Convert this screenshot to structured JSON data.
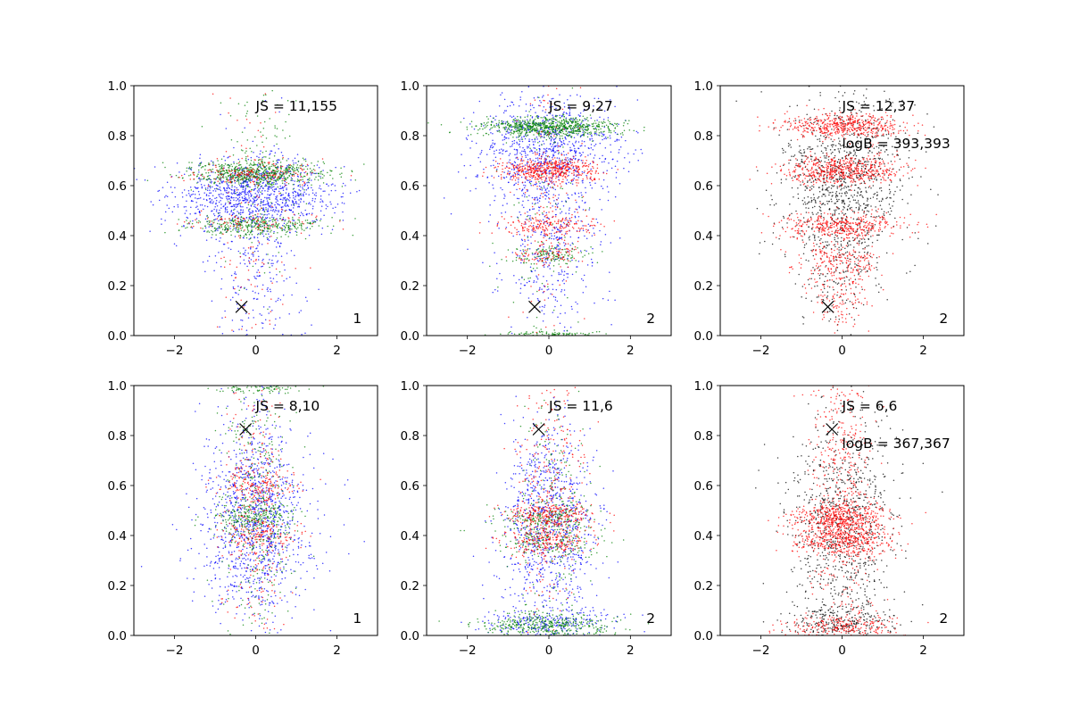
{
  "figure": {
    "layout": "2x3 grid of scatter panels",
    "colors": {
      "blue": "#0000ff",
      "green": "#008000",
      "red": "#ff0000",
      "black": "#000000"
    }
  },
  "chart_data": [
    {
      "type": "scatter",
      "xlim": [
        -3,
        3
      ],
      "ylim": [
        0,
        1
      ],
      "x_ticks": [
        "−2",
        "0",
        "2"
      ],
      "y_ticks": [
        "0.0",
        "0.2",
        "0.4",
        "0.6",
        "0.8",
        "1.0"
      ],
      "annotations": [
        "JS = 11,155"
      ],
      "panel_label": "1",
      "marker_x": {
        "x": -0.35,
        "y": 0.115
      },
      "series": [
        {
          "color": "#0000ff",
          "clusters": [
            {
              "y": 0.56,
              "sd_y": 0.07,
              "sd_x": 1.0,
              "n": 1000
            },
            {
              "y": 0.3,
              "sd_y": 0.25,
              "sd_x": 0.6,
              "n": 320
            }
          ]
        },
        {
          "color": "#008000",
          "clusters": [
            {
              "y": 0.65,
              "sd_y": 0.025,
              "sd_x": 0.85,
              "n": 650
            },
            {
              "y": 0.44,
              "sd_y": 0.02,
              "sd_x": 0.8,
              "n": 350
            },
            {
              "y": 0.7,
              "sd_y": 0.25,
              "sd_x": 0.5,
              "n": 140
            }
          ]
        },
        {
          "color": "#ff0000",
          "clusters": [
            {
              "y": 0.65,
              "sd_y": 0.025,
              "sd_x": 0.8,
              "n": 160
            },
            {
              "y": 0.45,
              "sd_y": 0.02,
              "sd_x": 0.8,
              "n": 80
            },
            {
              "y": 0.4,
              "sd_y": 0.3,
              "sd_x": 0.5,
              "n": 120
            }
          ]
        }
      ]
    },
    {
      "type": "scatter",
      "xlim": [
        -3,
        3
      ],
      "ylim": [
        0,
        1
      ],
      "x_ticks": [
        "−2",
        "0",
        "2"
      ],
      "y_ticks": [
        "0.0",
        "0.2",
        "0.4",
        "0.6",
        "0.8",
        "1.0"
      ],
      "annotations": [
        "JS = 9,27"
      ],
      "panel_label": "2",
      "marker_x": {
        "x": -0.35,
        "y": 0.115
      },
      "series": [
        {
          "color": "#0000ff",
          "clusters": [
            {
              "y": 0.75,
              "sd_y": 0.1,
              "sd_x": 0.9,
              "n": 800
            },
            {
              "y": 0.4,
              "sd_y": 0.22,
              "sd_x": 0.6,
              "n": 500
            }
          ]
        },
        {
          "color": "#008000",
          "clusters": [
            {
              "y": 0.835,
              "sd_y": 0.02,
              "sd_x": 0.85,
              "n": 750
            },
            {
              "y": 0.32,
              "sd_y": 0.02,
              "sd_x": 0.5,
              "n": 120
            },
            {
              "y": 0.005,
              "sd_y": 0.008,
              "sd_x": 0.7,
              "n": 100
            },
            {
              "y": 0.5,
              "sd_y": 0.3,
              "sd_x": 0.5,
              "n": 120
            }
          ]
        },
        {
          "color": "#ff0000",
          "clusters": [
            {
              "y": 0.66,
              "sd_y": 0.025,
              "sd_x": 0.6,
              "n": 500
            },
            {
              "y": 0.44,
              "sd_y": 0.02,
              "sd_x": 0.55,
              "n": 180
            },
            {
              "y": 0.32,
              "sd_y": 0.025,
              "sd_x": 0.5,
              "n": 90
            },
            {
              "y": 0.5,
              "sd_y": 0.3,
              "sd_x": 0.45,
              "n": 140
            }
          ]
        }
      ]
    },
    {
      "type": "scatter",
      "xlim": [
        -3,
        3
      ],
      "ylim": [
        0,
        1
      ],
      "x_ticks": [
        "−2",
        "0",
        "2"
      ],
      "y_ticks": [
        "0.0",
        "0.2",
        "0.4",
        "0.6",
        "0.8",
        "1.0"
      ],
      "annotations": [
        "JS = 12,37",
        "logB = 393,393"
      ],
      "panel_label": "2",
      "marker_x": {
        "x": -0.35,
        "y": 0.115
      },
      "series": [
        {
          "color": "#000000",
          "clusters": [
            {
              "y": 0.62,
              "sd_y": 0.18,
              "sd_x": 0.8,
              "n": 1000
            },
            {
              "y": 0.3,
              "sd_y": 0.2,
              "sd_x": 0.5,
              "n": 200
            }
          ]
        },
        {
          "color": "#ff0000",
          "clusters": [
            {
              "y": 0.84,
              "sd_y": 0.025,
              "sd_x": 0.75,
              "n": 500
            },
            {
              "y": 0.66,
              "sd_y": 0.03,
              "sd_x": 0.7,
              "n": 550
            },
            {
              "y": 0.44,
              "sd_y": 0.025,
              "sd_x": 0.75,
              "n": 400
            },
            {
              "y": 0.3,
              "sd_y": 0.04,
              "sd_x": 0.55,
              "n": 200
            },
            {
              "y": 0.15,
              "sd_y": 0.06,
              "sd_x": 0.35,
              "n": 120
            }
          ]
        }
      ]
    },
    {
      "type": "scatter",
      "xlim": [
        -3,
        3
      ],
      "ylim": [
        0,
        1
      ],
      "x_ticks": [
        "−2",
        "0",
        "2"
      ],
      "y_ticks": [
        "0.0",
        "0.2",
        "0.4",
        "0.6",
        "0.8",
        "1.0"
      ],
      "annotations": [
        "JS = 8,10"
      ],
      "panel_label": "1",
      "marker_x": {
        "x": -0.25,
        "y": 0.825
      },
      "series": [
        {
          "color": "#0000ff",
          "clusters": [
            {
              "y": 0.45,
              "sd_y": 0.18,
              "sd_x": 0.75,
              "n": 800
            },
            {
              "y": 0.5,
              "sd_y": 0.3,
              "sd_x": 0.45,
              "n": 400
            }
          ]
        },
        {
          "color": "#008000",
          "clusters": [
            {
              "y": 0.47,
              "sd_y": 0.03,
              "sd_x": 0.55,
              "n": 200
            },
            {
              "y": 0.5,
              "sd_y": 0.28,
              "sd_x": 0.45,
              "n": 400
            },
            {
              "y": 0.99,
              "sd_y": 0.01,
              "sd_x": 0.7,
              "n": 80
            }
          ]
        },
        {
          "color": "#ff0000",
          "clusters": [
            {
              "y": 0.6,
              "sd_y": 0.03,
              "sd_x": 0.5,
              "n": 120
            },
            {
              "y": 0.4,
              "sd_y": 0.03,
              "sd_x": 0.5,
              "n": 120
            },
            {
              "y": 0.5,
              "sd_y": 0.28,
              "sd_x": 0.4,
              "n": 300
            }
          ]
        }
      ]
    },
    {
      "type": "scatter",
      "xlim": [
        -3,
        3
      ],
      "ylim": [
        0,
        1
      ],
      "x_ticks": [
        "−2",
        "0",
        "2"
      ],
      "y_ticks": [
        "0.0",
        "0.2",
        "0.4",
        "0.6",
        "0.8",
        "1.0"
      ],
      "annotations": [
        "JS = 11,6"
      ],
      "panel_label": "2",
      "marker_x": {
        "x": -0.25,
        "y": 0.825
      },
      "series": [
        {
          "color": "#0000ff",
          "clusters": [
            {
              "y": 0.45,
              "sd_y": 0.2,
              "sd_x": 0.6,
              "n": 900
            },
            {
              "y": 0.05,
              "sd_y": 0.03,
              "sd_x": 0.8,
              "n": 250
            }
          ]
        },
        {
          "color": "#008000",
          "clusters": [
            {
              "y": 0.04,
              "sd_y": 0.025,
              "sd_x": 0.8,
              "n": 400
            },
            {
              "y": 0.47,
              "sd_y": 0.03,
              "sd_x": 0.6,
              "n": 200
            },
            {
              "y": 0.37,
              "sd_y": 0.03,
              "sd_x": 0.6,
              "n": 150
            },
            {
              "y": 0.5,
              "sd_y": 0.3,
              "sd_x": 0.4,
              "n": 200
            }
          ]
        },
        {
          "color": "#ff0000",
          "clusters": [
            {
              "y": 0.48,
              "sd_y": 0.025,
              "sd_x": 0.55,
              "n": 250
            },
            {
              "y": 0.38,
              "sd_y": 0.025,
              "sd_x": 0.55,
              "n": 200
            },
            {
              "y": 0.6,
              "sd_y": 0.3,
              "sd_x": 0.4,
              "n": 300
            }
          ]
        }
      ]
    },
    {
      "type": "scatter",
      "xlim": [
        -3,
        3
      ],
      "ylim": [
        0,
        1
      ],
      "x_ticks": [
        "−2",
        "0",
        "2"
      ],
      "y_ticks": [
        "0.0",
        "0.2",
        "0.4",
        "0.6",
        "0.8",
        "1.0"
      ],
      "annotations": [
        "JS = 6,6",
        "logB = 367,367"
      ],
      "panel_label": "2",
      "marker_x": {
        "x": -0.25,
        "y": 0.825
      },
      "series": [
        {
          "color": "#000000",
          "clusters": [
            {
              "y": 0.45,
              "sd_y": 0.22,
              "sd_x": 0.65,
              "n": 900
            },
            {
              "y": 0.05,
              "sd_y": 0.04,
              "sd_x": 0.7,
              "n": 250
            }
          ]
        },
        {
          "color": "#ff0000",
          "clusters": [
            {
              "y": 0.47,
              "sd_y": 0.03,
              "sd_x": 0.6,
              "n": 450
            },
            {
              "y": 0.38,
              "sd_y": 0.03,
              "sd_x": 0.6,
              "n": 400
            },
            {
              "y": 0.03,
              "sd_y": 0.025,
              "sd_x": 0.7,
              "n": 250
            },
            {
              "y": 0.6,
              "sd_y": 0.3,
              "sd_x": 0.4,
              "n": 500
            }
          ]
        }
      ]
    }
  ]
}
